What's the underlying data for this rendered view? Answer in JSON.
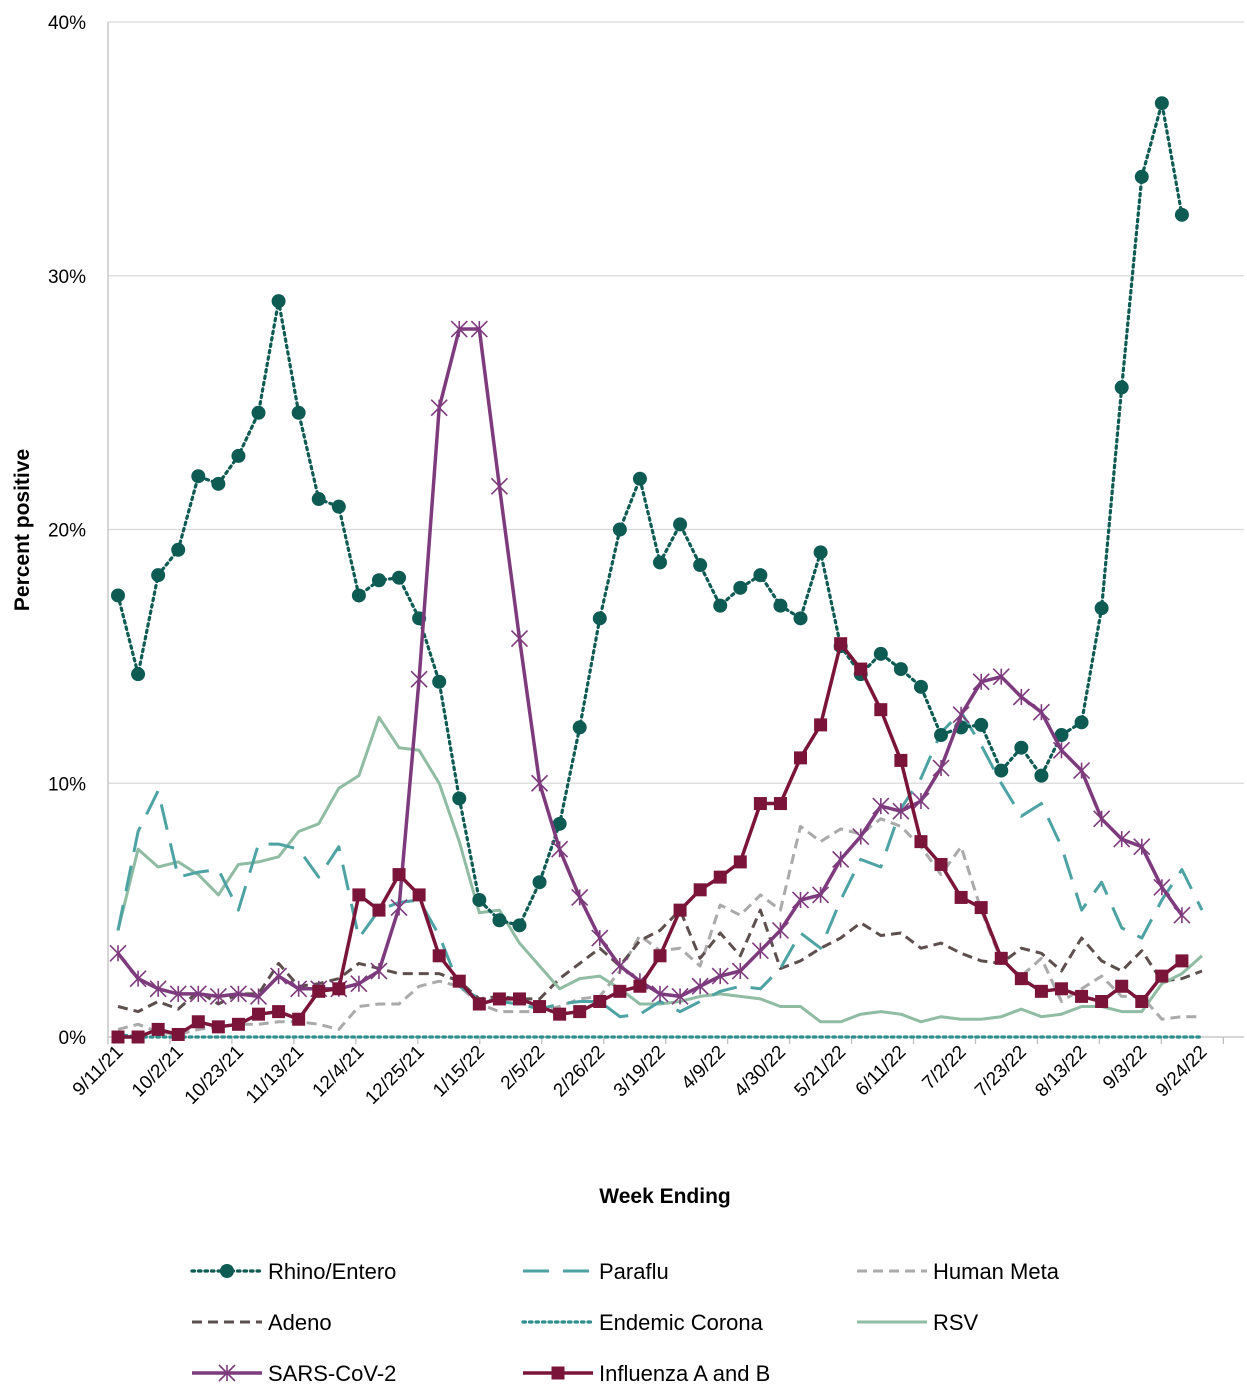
{
  "chart_data": {
    "type": "line",
    "title": "",
    "xlabel": "Week Ending",
    "ylabel": "Percent positive",
    "ylim": [
      0,
      40
    ],
    "yticks": [
      "0%",
      "10%",
      "20%",
      "30%",
      "40%"
    ],
    "ytick_values": [
      0,
      10,
      20,
      30,
      40
    ],
    "grid": "horizontal",
    "legend_position": "bottom",
    "x_labels": [
      "9/11/21",
      "10/2/21",
      "10/23/21",
      "11/13/21",
      "12/4/21",
      "12/25/21",
      "1/15/22",
      "2/5/22",
      "2/26/22",
      "3/19/22",
      "4/9/22",
      "4/30/22",
      "5/21/22",
      "6/11/22",
      "7/2/22",
      "7/23/22",
      "8/13/22",
      "9/3/22",
      "9/24/22"
    ],
    "x_label_week_index": [
      0,
      3,
      6,
      9,
      12,
      15,
      18,
      21,
      24,
      27,
      30,
      33,
      36,
      39,
      42,
      45,
      48,
      51,
      54
    ],
    "weeks": 55,
    "series": [
      {
        "name": "Rhino/Entero",
        "color": "#0e5b54",
        "style": "dotted",
        "marker": "circle",
        "values": [
          17.4,
          14.3,
          18.2,
          19.2,
          22.1,
          21.8,
          22.9,
          24.6,
          29.0,
          24.6,
          21.2,
          20.9,
          17.4,
          18.0,
          18.1,
          16.5,
          14.0,
          9.4,
          5.4,
          4.6,
          4.4,
          6.1,
          8.4,
          12.2,
          16.5,
          20.0,
          22.0,
          18.7,
          20.2,
          18.6,
          17.0,
          17.7,
          18.2,
          17.0,
          16.5,
          19.1,
          15.4,
          14.3,
          15.1,
          14.5,
          13.8,
          11.9,
          12.2,
          12.3,
          10.5,
          11.4,
          10.3,
          11.9,
          12.4,
          16.9,
          25.6,
          33.9,
          36.8,
          32.4,
          null
        ]
      },
      {
        "name": "Paraflu",
        "color": "#4da3a3",
        "style": "long-dash",
        "marker": "none",
        "values": [
          4.2,
          8.1,
          9.7,
          6.3,
          6.5,
          6.6,
          5.0,
          7.6,
          7.6,
          7.4,
          6.3,
          7.5,
          3.9,
          5.0,
          5.3,
          5.4,
          4.0,
          2.0,
          1.5,
          1.4,
          1.3,
          1.1,
          1.3,
          1.4,
          1.4,
          0.8,
          0.9,
          1.4,
          1.0,
          1.4,
          1.8,
          2.0,
          1.9,
          2.7,
          4.1,
          3.5,
          5.4,
          7.0,
          6.7,
          9.0,
          10.2,
          12.0,
          12.8,
          11.5,
          10.0,
          8.7,
          9.2,
          7.5,
          5.0,
          6.1,
          4.3,
          3.9,
          5.4,
          6.6,
          5.0
        ]
      },
      {
        "name": "Human Meta",
        "color": "#aaaaaa",
        "style": "dash",
        "marker": "none",
        "values": [
          0.3,
          0.5,
          0.2,
          0.1,
          0.3,
          0.4,
          0.5,
          0.5,
          0.6,
          0.6,
          0.5,
          0.3,
          1.2,
          1.3,
          1.3,
          2.0,
          2.2,
          2.0,
          1.3,
          1.0,
          1.0,
          1.0,
          1.2,
          1.5,
          1.6,
          2.6,
          4.0,
          3.4,
          3.5,
          2.8,
          5.2,
          4.8,
          5.6,
          5.0,
          8.3,
          7.7,
          8.2,
          8.0,
          8.6,
          8.3,
          7.5,
          6.4,
          7.5,
          5.0,
          3.0,
          2.4,
          3.1,
          1.4,
          1.9,
          2.4,
          1.6,
          1.6,
          0.7,
          0.8,
          0.8
        ]
      },
      {
        "name": "Adeno",
        "color": "#5e4f4f",
        "style": "dash",
        "marker": "none",
        "values": [
          1.2,
          1.0,
          1.4,
          1.1,
          1.8,
          1.3,
          1.7,
          1.7,
          2.9,
          2.0,
          2.1,
          2.3,
          2.9,
          2.7,
          2.5,
          2.5,
          2.5,
          2.2,
          1.5,
          1.6,
          1.5,
          1.5,
          2.3,
          2.9,
          3.5,
          2.8,
          3.8,
          4.2,
          5.0,
          3.1,
          4.1,
          3.2,
          5.0,
          2.7,
          3.0,
          3.5,
          3.9,
          4.5,
          4.0,
          4.1,
          3.5,
          3.7,
          3.3,
          3.0,
          2.9,
          3.5,
          3.3,
          2.6,
          3.9,
          3.0,
          2.6,
          3.4,
          2.2,
          2.3,
          2.6
        ]
      },
      {
        "name": "Endemic Corona",
        "color": "#2f8f8f",
        "style": "dotted",
        "marker": "none",
        "values": [
          0.1,
          0.0,
          0.0,
          0.0,
          0.0,
          0.0,
          0.0,
          0.0,
          0.0,
          0.0,
          0.0,
          0.0,
          0.0,
          0.0,
          0.0,
          0.0,
          0.0,
          0.0,
          0.0,
          0.0,
          0.0,
          0.0,
          0.0,
          0.0,
          0.0,
          0.0,
          0.0,
          0.0,
          0.0,
          0.0,
          0.0,
          0.0,
          0.0,
          0.0,
          0.0,
          0.0,
          0.0,
          0.0,
          0.0,
          0.0,
          0.0,
          0.0,
          0.0,
          0.0,
          0.0,
          0.0,
          0.0,
          0.0,
          0.0,
          0.0,
          0.0,
          0.0,
          0.0,
          0.0,
          0.0
        ]
      },
      {
        "name": "RSV",
        "color": "#8fbca3",
        "style": "solid",
        "marker": "none",
        "values": [
          4.2,
          7.4,
          6.7,
          6.9,
          6.4,
          5.6,
          6.8,
          6.9,
          7.1,
          8.1,
          8.4,
          9.8,
          10.3,
          12.6,
          11.4,
          11.3,
          10.0,
          7.7,
          4.9,
          5.0,
          3.7,
          2.8,
          1.9,
          2.3,
          2.4,
          1.9,
          1.3,
          1.3,
          1.4,
          1.6,
          1.7,
          1.6,
          1.5,
          1.2,
          1.2,
          0.6,
          0.6,
          0.9,
          1.0,
          0.9,
          0.6,
          0.8,
          0.7,
          0.7,
          0.8,
          1.1,
          0.8,
          0.9,
          1.2,
          1.2,
          1.0,
          1.0,
          2.1,
          2.5,
          3.2
        ]
      },
      {
        "name": "SARS-CoV-2",
        "color": "#7d3b7d",
        "style": "solid",
        "marker": "star",
        "values": [
          3.3,
          2.3,
          1.9,
          1.7,
          1.7,
          1.6,
          1.7,
          1.6,
          2.4,
          1.9,
          1.9,
          1.9,
          2.1,
          2.6,
          5.1,
          14.1,
          24.8,
          27.9,
          27.9,
          21.7,
          15.7,
          10.0,
          7.4,
          5.5,
          3.9,
          2.8,
          2.2,
          1.7,
          1.6,
          2.0,
          2.4,
          2.6,
          3.4,
          4.2,
          5.4,
          5.6,
          7.0,
          7.9,
          9.1,
          8.9,
          9.3,
          10.6,
          12.7,
          14.0,
          14.2,
          13.4,
          12.8,
          11.3,
          10.5,
          8.6,
          7.8,
          7.5,
          5.9,
          4.8,
          null
        ]
      },
      {
        "name": "Influenza A and B",
        "color": "#7a1438",
        "style": "solid",
        "marker": "square",
        "values": [
          0.0,
          0.0,
          0.3,
          0.1,
          0.6,
          0.4,
          0.5,
          0.9,
          1.0,
          0.7,
          1.8,
          1.9,
          5.6,
          5.0,
          6.4,
          5.6,
          3.2,
          2.2,
          1.3,
          1.5,
          1.5,
          1.2,
          0.9,
          1.0,
          1.4,
          1.8,
          2.0,
          3.2,
          5.0,
          5.8,
          6.3,
          6.9,
          9.2,
          9.2,
          11.0,
          12.3,
          15.5,
          14.5,
          12.9,
          10.9,
          7.7,
          6.8,
          5.5,
          5.1,
          3.1,
          2.3,
          1.8,
          1.9,
          1.6,
          1.4,
          2.0,
          1.4,
          2.4,
          3.0,
          null
        ]
      }
    ]
  }
}
